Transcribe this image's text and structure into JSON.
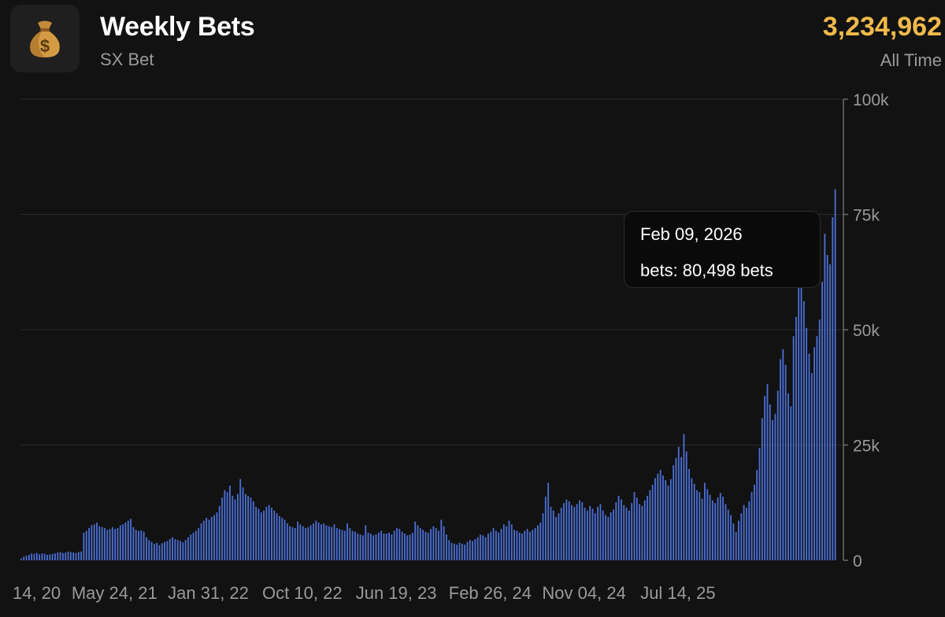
{
  "header": {
    "icon": "money-bag-icon",
    "title": "Weekly Bets",
    "subtitle": "SX Bet",
    "total": "3,234,962",
    "period": "All Time"
  },
  "tooltip": {
    "date": "Feb 09, 2026",
    "value": "bets: 80,498 bets"
  },
  "colors": {
    "background": "#121212",
    "bar": "#4b6fd6",
    "accent": "#f0b94a",
    "grid": "#2a2a2a",
    "muted": "#9a9a9a"
  },
  "chart_data": {
    "type": "bar",
    "title": "Weekly Bets",
    "ylabel": "",
    "xlabel": "",
    "ylim": [
      0,
      100000
    ],
    "y_ticks": [
      "0",
      "25k",
      "50k",
      "75k",
      "100k"
    ],
    "y_tick_values": [
      0,
      25000,
      50000,
      75000,
      100000
    ],
    "x_tick_labels": [
      "14, 20",
      "May 24, 21",
      "Jan 31, 22",
      "Oct 10, 22",
      "Jun 19, 23",
      "Feb 26, 24",
      "Nov 04, 24",
      "Jul 14, 25"
    ],
    "x_tick_week_index": [
      0,
      36,
      72,
      108,
      144,
      180,
      216,
      252
    ],
    "grid": true,
    "axis_position": "right",
    "highlight": {
      "date": "Feb 09, 2026",
      "value": 80498
    },
    "values": [
      400,
      800,
      1000,
      1200,
      1500,
      1400,
      1600,
      1300,
      1500,
      1400,
      1200,
      1300,
      1400,
      1500,
      1700,
      1800,
      1600,
      1700,
      1900,
      1800,
      1700,
      1600,
      1800,
      1900,
      6000,
      6400,
      7000,
      7600,
      7800,
      8200,
      7400,
      7200,
      7000,
      6600,
      6800,
      7200,
      6800,
      7000,
      7600,
      7800,
      8200,
      8600,
      9000,
      7200,
      6600,
      6400,
      6500,
      6200,
      5000,
      4400,
      4000,
      3600,
      3800,
      3300,
      3700,
      4000,
      4200,
      4600,
      5000,
      4600,
      4400,
      4200,
      3900,
      4400,
      5000,
      5600,
      6000,
      6400,
      7000,
      8000,
      8600,
      9200,
      8800,
      9400,
      9800,
      10400,
      11800,
      13600,
      15200,
      14800,
      16200,
      14000,
      13200,
      14400,
      17600,
      15800,
      14400,
      14000,
      13600,
      12800,
      11600,
      11200,
      10400,
      10800,
      11600,
      12000,
      11400,
      10800,
      10200,
      9600,
      9200,
      8800,
      8000,
      7400,
      7200,
      7000,
      8400,
      7800,
      7400,
      7000,
      7200,
      7600,
      8000,
      8600,
      8200,
      7800,
      8000,
      7600,
      7400,
      7200,
      7800,
      7000,
      6800,
      6600,
      6400,
      8000,
      7000,
      6400,
      6200,
      5800,
      5600,
      5400,
      7600,
      6000,
      5800,
      5400,
      5600,
      6000,
      6400,
      5800,
      5800,
      6000,
      5600,
      6400,
      7000,
      6800,
      6200,
      5800,
      5400,
      5600,
      6000,
      8400,
      7600,
      7000,
      6600,
      6200,
      6000,
      6800,
      7400,
      7000,
      6400,
      8800,
      7400,
      5600,
      4400,
      3800,
      3600,
      3400,
      3800,
      3600,
      3400,
      4000,
      4400,
      4200,
      4600,
      5000,
      5600,
      5400,
      5000,
      5800,
      6200,
      7000,
      6400,
      6000,
      6800,
      7800,
      7400,
      8600,
      7800,
      6600,
      6400,
      6000,
      5800,
      6400,
      6800,
      6200,
      6600,
      7000,
      7600,
      8200,
      10200,
      13800,
      16800,
      11600,
      10800,
      9400,
      10200,
      11400,
      12400,
      13200,
      12800,
      12000,
      11600,
      12200,
      13000,
      12600,
      11400,
      10800,
      11800,
      11200,
      10200,
      11600,
      12200,
      10800,
      9800,
      9400,
      10400,
      11000,
      12600,
      14000,
      13200,
      12000,
      11400,
      10800,
      12400,
      14800,
      13600,
      12200,
      11800,
      13000,
      14000,
      15200,
      16400,
      17800,
      18800,
      19600,
      18400,
      17400,
      16200,
      17600,
      20600,
      22200,
      24600,
      22400,
      27400,
      23600,
      19800,
      17800,
      16600,
      15200,
      14800,
      13400,
      16800,
      15400,
      14200,
      13000,
      12400,
      13600,
      14600,
      13800,
      12200,
      11000,
      9800,
      8000,
      6200,
      8600,
      10200,
      12000,
      11400,
      12800,
      14800,
      16400,
      19600,
      24400,
      30800,
      35600,
      38200,
      33800,
      30400,
      31800,
      36800,
      43600,
      45800,
      42400,
      36200,
      33400,
      48600,
      52800,
      62800,
      60800,
      56200,
      50400,
      44800,
      40600,
      46200,
      48600,
      52200,
      60400,
      70800,
      66200,
      64200,
      74400,
      80498
    ]
  }
}
